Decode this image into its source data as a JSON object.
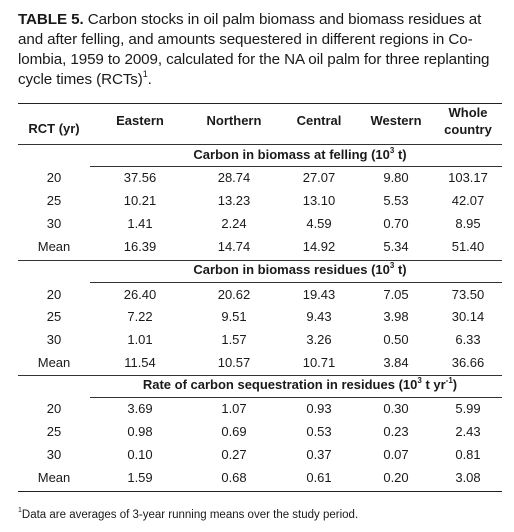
{
  "caption": {
    "label": "TABLE 5.",
    "line1": " Carbon stocks in oil palm biomass and biomass residues at",
    "line2": "and after felling, and amounts sequestered in different regions in Co-",
    "line3": "lombia, 1959 to 2009, calculated for the NA oil palm for three replanting",
    "line4": "cycle times (RCTs)",
    "line4_sup": "1",
    "line4_end": "."
  },
  "header": {
    "rct": "RCT (yr)",
    "eastern": "Eastern",
    "northern": "Northern",
    "central": "Central",
    "western": "Western",
    "whole_line1": "Whole",
    "whole_line2": "country"
  },
  "sections": [
    {
      "title": "Carbon in biomass at felling (10",
      "title_sup": "3",
      "title_end": " t)",
      "rows": [
        [
          "20",
          "37.56",
          "28.74",
          "27.07",
          "9.80",
          "103.17"
        ],
        [
          "25",
          "10.21",
          "13.23",
          "13.10",
          "5.53",
          "42.07"
        ],
        [
          "30",
          "1.41",
          "2.24",
          "4.59",
          "0.70",
          "8.95"
        ],
        [
          "Mean",
          "16.39",
          "14.74",
          "14.92",
          "5.34",
          "51.40"
        ]
      ]
    },
    {
      "title": "Carbon in biomass residues (10",
      "title_sup": "3",
      "title_end": " t)",
      "rows": [
        [
          "20",
          "26.40",
          "20.62",
          "19.43",
          "7.05",
          "73.50"
        ],
        [
          "25",
          "7.22",
          "9.51",
          "9.43",
          "3.98",
          "30.14"
        ],
        [
          "30",
          "1.01",
          "1.57",
          "3.26",
          "0.50",
          "6.33"
        ],
        [
          "Mean",
          "11.54",
          "10.57",
          "10.71",
          "3.84",
          "36.66"
        ]
      ]
    },
    {
      "title": "Rate of carbon sequestration in residues (10",
      "title_sup": "3",
      "title_mid": " t yr",
      "title_sup2": "-1",
      "title_end": ")",
      "rows": [
        [
          "20",
          "3.69",
          "1.07",
          "0.93",
          "0.30",
          "5.99"
        ],
        [
          "25",
          "0.98",
          "0.69",
          "0.53",
          "0.23",
          "2.43"
        ],
        [
          "30",
          "0.10",
          "0.27",
          "0.37",
          "0.07",
          "0.81"
        ],
        [
          "Mean",
          "1.59",
          "0.68",
          "0.61",
          "0.20",
          "3.08"
        ]
      ]
    }
  ],
  "footnote": {
    "sup": "1",
    "text": "Data are averages of 3-year running means over the study period."
  }
}
